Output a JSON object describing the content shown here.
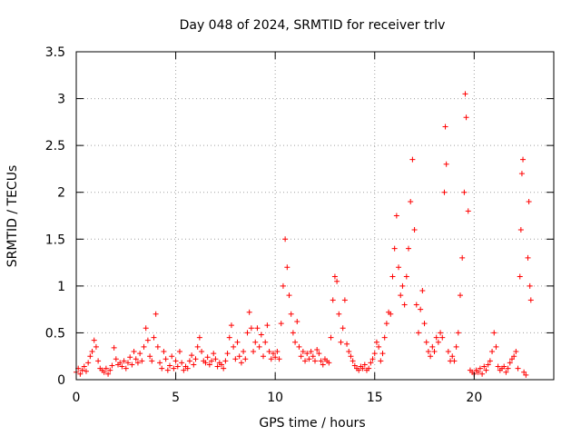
{
  "chart_data": {
    "type": "scatter",
    "title": "Day 048 of 2024, SRMTID for receiver trlv",
    "xlabel": "GPS time / hours",
    "ylabel": "SRMTID / TECUs",
    "xlim": [
      0,
      24
    ],
    "ylim": [
      0,
      3.5
    ],
    "xticks": [
      0,
      5,
      10,
      15,
      20
    ],
    "xtick_labels": [
      "0",
      "5",
      "10",
      "15",
      "20"
    ],
    "yticks": [
      0,
      0.5,
      1,
      1.5,
      2,
      2.5,
      3,
      3.5
    ],
    "ytick_labels": [
      "0",
      "0.5",
      "1",
      "1.5",
      "2",
      "2.5",
      "3",
      "3.5"
    ],
    "grid": true,
    "marker": "+",
    "series": [
      {
        "name": "trlv",
        "color": "#ff0000",
        "points": [
          [
            0.0,
            0.08
          ],
          [
            0.1,
            0.12
          ],
          [
            0.2,
            0.06
          ],
          [
            0.3,
            0.1
          ],
          [
            0.4,
            0.14
          ],
          [
            0.5,
            0.09
          ],
          [
            0.6,
            0.18
          ],
          [
            0.7,
            0.25
          ],
          [
            0.8,
            0.3
          ],
          [
            0.9,
            0.42
          ],
          [
            1.0,
            0.35
          ],
          [
            1.1,
            0.2
          ],
          [
            1.2,
            0.12
          ],
          [
            1.3,
            0.1
          ],
          [
            1.4,
            0.08
          ],
          [
            1.5,
            0.12
          ],
          [
            1.6,
            0.06
          ],
          [
            1.7,
            0.1
          ],
          [
            1.8,
            0.15
          ],
          [
            1.9,
            0.34
          ],
          [
            2.0,
            0.22
          ],
          [
            2.1,
            0.16
          ],
          [
            2.2,
            0.18
          ],
          [
            2.3,
            0.14
          ],
          [
            2.4,
            0.2
          ],
          [
            2.5,
            0.12
          ],
          [
            2.6,
            0.18
          ],
          [
            2.7,
            0.24
          ],
          [
            2.8,
            0.16
          ],
          [
            2.9,
            0.3
          ],
          [
            3.0,
            0.22
          ],
          [
            3.1,
            0.18
          ],
          [
            3.2,
            0.28
          ],
          [
            3.3,
            0.2
          ],
          [
            3.4,
            0.35
          ],
          [
            3.5,
            0.55
          ],
          [
            3.6,
            0.42
          ],
          [
            3.7,
            0.25
          ],
          [
            3.8,
            0.2
          ],
          [
            3.9,
            0.45
          ],
          [
            4.0,
            0.7
          ],
          [
            4.1,
            0.35
          ],
          [
            4.2,
            0.18
          ],
          [
            4.3,
            0.12
          ],
          [
            4.4,
            0.3
          ],
          [
            4.5,
            0.22
          ],
          [
            4.6,
            0.1
          ],
          [
            4.7,
            0.15
          ],
          [
            4.8,
            0.25
          ],
          [
            4.9,
            0.12
          ],
          [
            5.0,
            0.2
          ],
          [
            5.1,
            0.14
          ],
          [
            5.2,
            0.3
          ],
          [
            5.3,
            0.18
          ],
          [
            5.4,
            0.1
          ],
          [
            5.5,
            0.14
          ],
          [
            5.6,
            0.12
          ],
          [
            5.7,
            0.2
          ],
          [
            5.8,
            0.26
          ],
          [
            5.9,
            0.16
          ],
          [
            6.0,
            0.22
          ],
          [
            6.1,
            0.35
          ],
          [
            6.2,
            0.45
          ],
          [
            6.3,
            0.3
          ],
          [
            6.4,
            0.2
          ],
          [
            6.5,
            0.18
          ],
          [
            6.6,
            0.24
          ],
          [
            6.7,
            0.16
          ],
          [
            6.8,
            0.2
          ],
          [
            6.9,
            0.28
          ],
          [
            7.0,
            0.22
          ],
          [
            7.1,
            0.14
          ],
          [
            7.2,
            0.18
          ],
          [
            7.3,
            0.16
          ],
          [
            7.4,
            0.12
          ],
          [
            7.5,
            0.2
          ],
          [
            7.6,
            0.28
          ],
          [
            7.7,
            0.45
          ],
          [
            7.8,
            0.58
          ],
          [
            7.9,
            0.35
          ],
          [
            8.0,
            0.22
          ],
          [
            8.1,
            0.4
          ],
          [
            8.2,
            0.25
          ],
          [
            8.3,
            0.18
          ],
          [
            8.4,
            0.3
          ],
          [
            8.5,
            0.22
          ],
          [
            8.6,
            0.5
          ],
          [
            8.7,
            0.72
          ],
          [
            8.8,
            0.55
          ],
          [
            8.9,
            0.3
          ],
          [
            9.0,
            0.4
          ],
          [
            9.1,
            0.55
          ],
          [
            9.2,
            0.35
          ],
          [
            9.3,
            0.48
          ],
          [
            9.4,
            0.25
          ],
          [
            9.5,
            0.4
          ],
          [
            9.6,
            0.58
          ],
          [
            9.7,
            0.3
          ],
          [
            9.8,
            0.22
          ],
          [
            9.9,
            0.28
          ],
          [
            10.0,
            0.24
          ],
          [
            10.1,
            0.3
          ],
          [
            10.2,
            0.22
          ],
          [
            10.3,
            0.6
          ],
          [
            10.4,
            1.0
          ],
          [
            10.5,
            1.5
          ],
          [
            10.6,
            1.2
          ],
          [
            10.7,
            0.9
          ],
          [
            10.8,
            0.7
          ],
          [
            10.9,
            0.5
          ],
          [
            11.0,
            0.4
          ],
          [
            11.1,
            0.62
          ],
          [
            11.2,
            0.35
          ],
          [
            11.3,
            0.25
          ],
          [
            11.4,
            0.3
          ],
          [
            11.5,
            0.2
          ],
          [
            11.6,
            0.28
          ],
          [
            11.7,
            0.22
          ],
          [
            11.8,
            0.3
          ],
          [
            11.9,
            0.25
          ],
          [
            12.0,
            0.2
          ],
          [
            12.1,
            0.32
          ],
          [
            12.2,
            0.28
          ],
          [
            12.3,
            0.2
          ],
          [
            12.4,
            0.16
          ],
          [
            12.5,
            0.22
          ],
          [
            12.6,
            0.2
          ],
          [
            12.7,
            0.18
          ],
          [
            12.8,
            0.45
          ],
          [
            12.9,
            0.85
          ],
          [
            13.0,
            1.1
          ],
          [
            13.1,
            1.05
          ],
          [
            13.2,
            0.7
          ],
          [
            13.3,
            0.4
          ],
          [
            13.4,
            0.55
          ],
          [
            13.5,
            0.85
          ],
          [
            13.6,
            0.38
          ],
          [
            13.7,
            0.3
          ],
          [
            13.8,
            0.25
          ],
          [
            13.9,
            0.2
          ],
          [
            14.0,
            0.15
          ],
          [
            14.1,
            0.12
          ],
          [
            14.2,
            0.1
          ],
          [
            14.3,
            0.14
          ],
          [
            14.4,
            0.12
          ],
          [
            14.5,
            0.16
          ],
          [
            14.6,
            0.1
          ],
          [
            14.7,
            0.12
          ],
          [
            14.8,
            0.18
          ],
          [
            14.9,
            0.22
          ],
          [
            15.0,
            0.28
          ],
          [
            15.1,
            0.4
          ],
          [
            15.2,
            0.35
          ],
          [
            15.3,
            0.2
          ],
          [
            15.4,
            0.28
          ],
          [
            15.5,
            0.45
          ],
          [
            15.6,
            0.6
          ],
          [
            15.7,
            0.72
          ],
          [
            15.8,
            0.7
          ],
          [
            15.9,
            1.1
          ],
          [
            16.0,
            1.4
          ],
          [
            16.1,
            1.75
          ],
          [
            16.2,
            1.2
          ],
          [
            16.3,
            0.9
          ],
          [
            16.4,
            1.0
          ],
          [
            16.5,
            0.8
          ],
          [
            16.6,
            1.1
          ],
          [
            16.7,
            1.4
          ],
          [
            16.8,
            1.9
          ],
          [
            16.9,
            2.35
          ],
          [
            17.0,
            1.6
          ],
          [
            17.1,
            0.8
          ],
          [
            17.2,
            0.5
          ],
          [
            17.3,
            0.75
          ],
          [
            17.4,
            0.95
          ],
          [
            17.5,
            0.6
          ],
          [
            17.6,
            0.4
          ],
          [
            17.7,
            0.3
          ],
          [
            17.8,
            0.25
          ],
          [
            17.9,
            0.35
          ],
          [
            18.0,
            0.3
          ],
          [
            18.1,
            0.45
          ],
          [
            18.2,
            0.4
          ],
          [
            18.3,
            0.5
          ],
          [
            18.4,
            0.45
          ],
          [
            18.5,
            2.0
          ],
          [
            18.55,
            2.7
          ],
          [
            18.6,
            2.3
          ],
          [
            18.7,
            0.3
          ],
          [
            18.8,
            0.2
          ],
          [
            18.9,
            0.25
          ],
          [
            19.0,
            0.2
          ],
          [
            19.1,
            0.35
          ],
          [
            19.2,
            0.5
          ],
          [
            19.3,
            0.9
          ],
          [
            19.4,
            1.3
          ],
          [
            19.5,
            2.0
          ],
          [
            19.55,
            3.05
          ],
          [
            19.6,
            2.8
          ],
          [
            19.7,
            1.8
          ],
          [
            19.8,
            0.1
          ],
          [
            19.9,
            0.08
          ],
          [
            20.0,
            0.06
          ],
          [
            20.1,
            0.1
          ],
          [
            20.2,
            0.08
          ],
          [
            20.3,
            0.12
          ],
          [
            20.4,
            0.06
          ],
          [
            20.5,
            0.14
          ],
          [
            20.6,
            0.1
          ],
          [
            20.7,
            0.16
          ],
          [
            20.8,
            0.2
          ],
          [
            20.9,
            0.3
          ],
          [
            21.0,
            0.5
          ],
          [
            21.1,
            0.35
          ],
          [
            21.2,
            0.14
          ],
          [
            21.3,
            0.1
          ],
          [
            21.4,
            0.12
          ],
          [
            21.5,
            0.14
          ],
          [
            21.6,
            0.08
          ],
          [
            21.7,
            0.12
          ],
          [
            21.8,
            0.18
          ],
          [
            21.9,
            0.22
          ],
          [
            22.0,
            0.25
          ],
          [
            22.1,
            0.3
          ],
          [
            22.2,
            0.12
          ],
          [
            22.3,
            1.1
          ],
          [
            22.35,
            1.6
          ],
          [
            22.4,
            2.2
          ],
          [
            22.45,
            2.35
          ],
          [
            22.5,
            0.08
          ],
          [
            22.6,
            0.05
          ],
          [
            22.7,
            1.3
          ],
          [
            22.75,
            1.9
          ],
          [
            22.8,
            1.0
          ],
          [
            22.85,
            0.85
          ]
        ]
      }
    ]
  }
}
